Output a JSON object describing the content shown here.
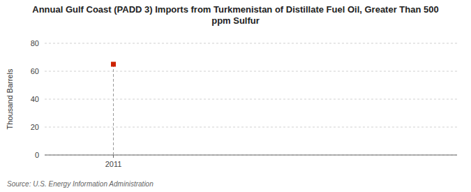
{
  "chart_data": {
    "type": "scatter",
    "title": "Annual Gulf Coast (PADD 3) Imports from Turkmenistan of Distillate Fuel Oil, Greater Than 500\nppm Sulfur",
    "ylabel": "Thousand Barrels",
    "source": "Source: U.S. Energy Information Administration",
    "x": [
      2011
    ],
    "values": [
      65
    ],
    "color": "#cc2200",
    "marker": "square",
    "xlim": [
      2010.5,
      2013.5
    ],
    "xticks": [
      2011
    ],
    "ylim": [
      0,
      80
    ],
    "yticks": [
      0,
      20,
      40,
      60,
      80
    ],
    "grid": true
  }
}
